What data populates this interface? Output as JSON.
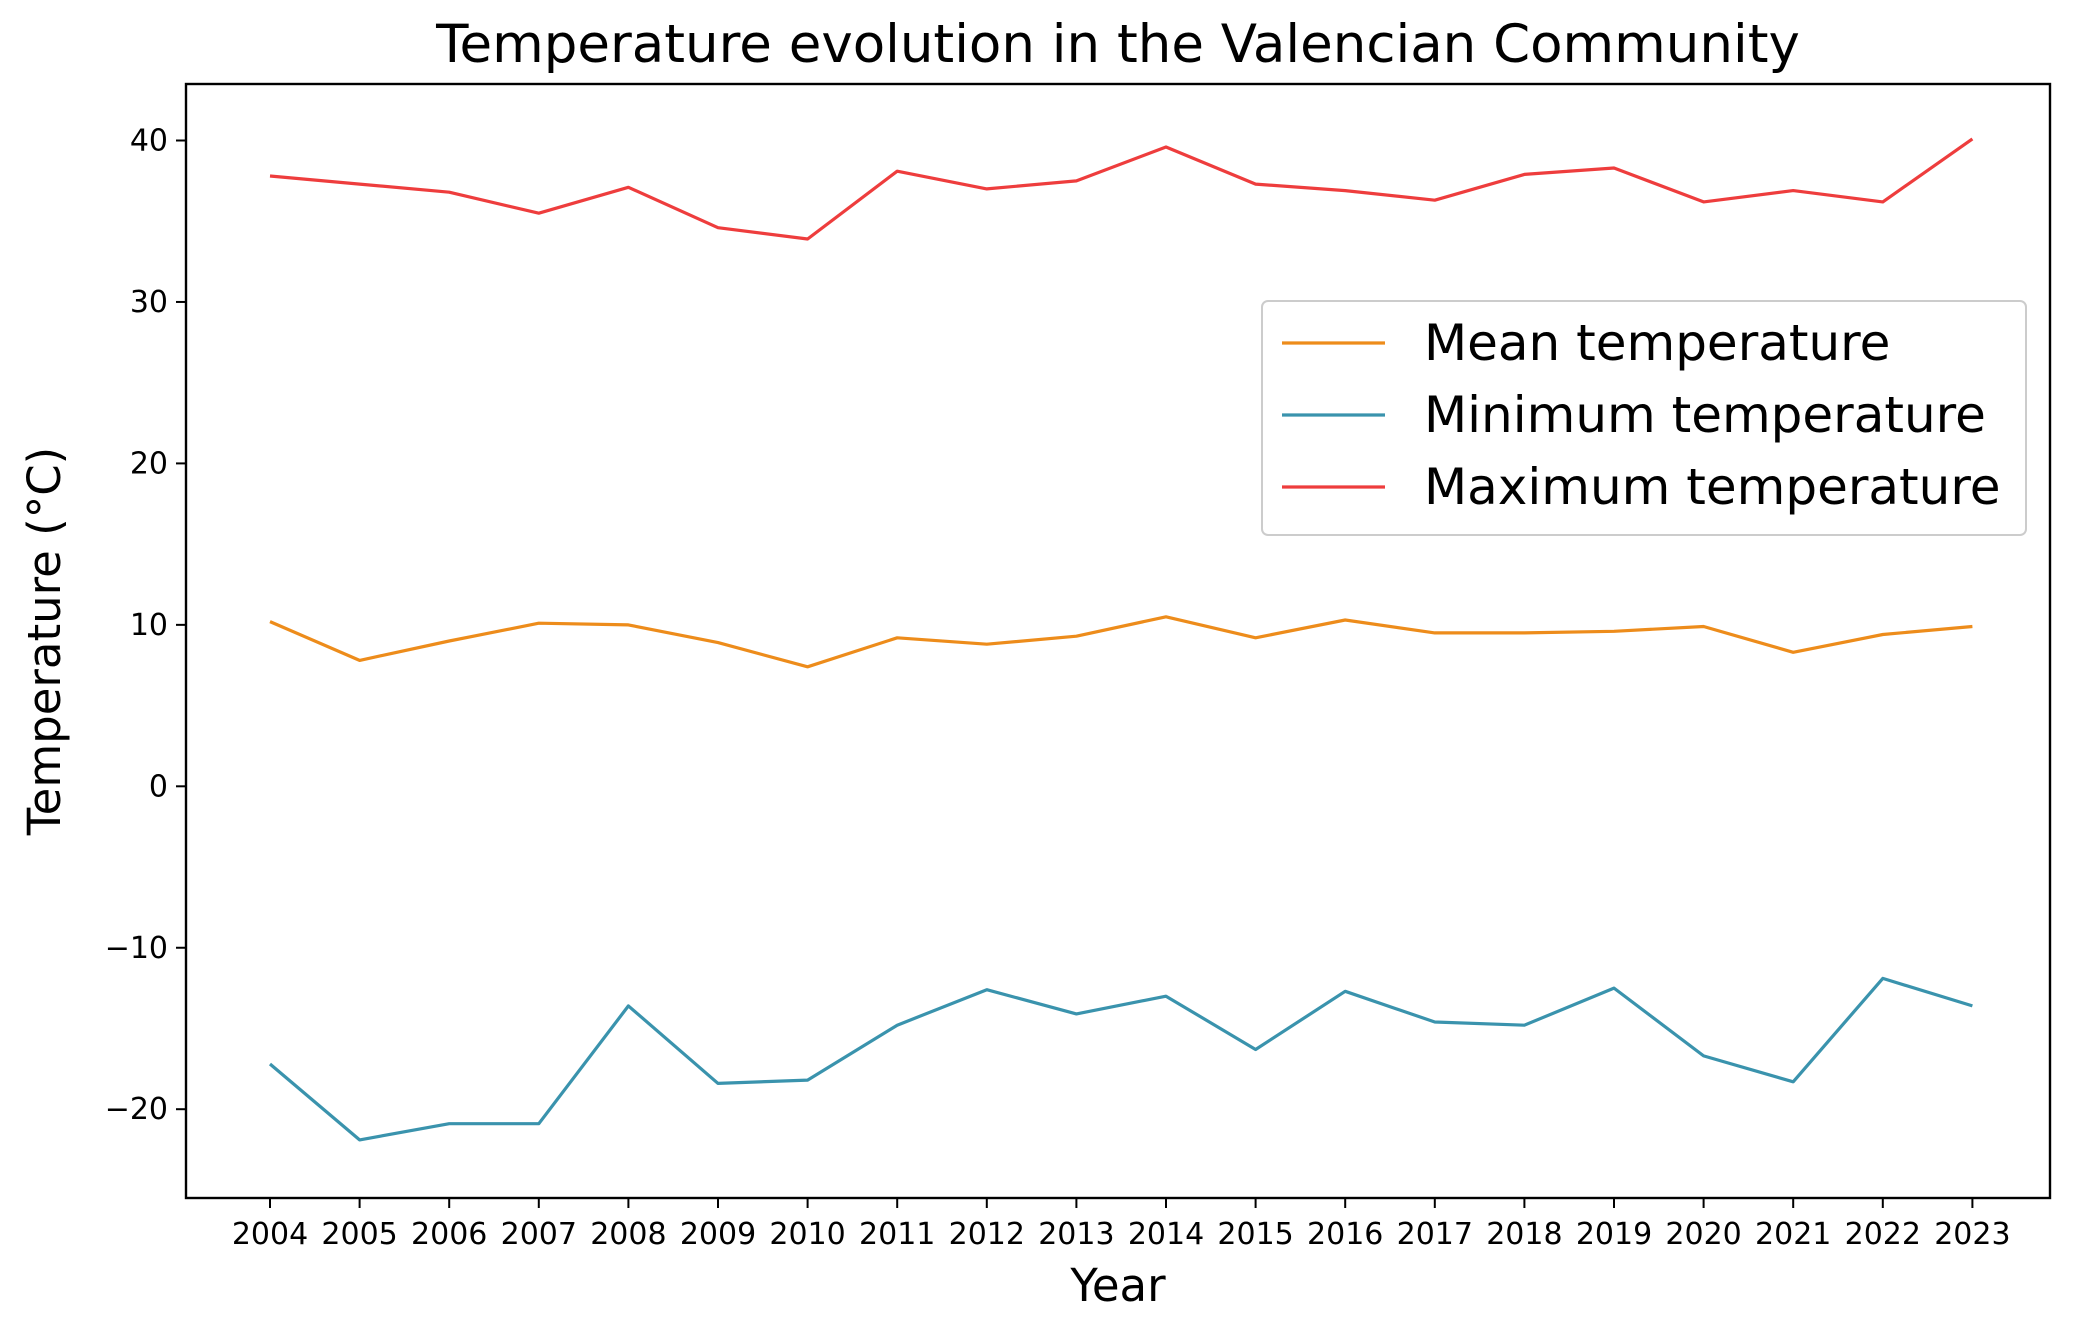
{
  "chart_data": {
    "type": "line",
    "title": "Temperature evolution in the Valencian Community",
    "xlabel": "Year",
    "ylabel": "Temperature (°C)",
    "categories": [
      "2004",
      "2005",
      "2006",
      "2007",
      "2008",
      "2009",
      "2010",
      "2011",
      "2012",
      "2013",
      "2014",
      "2015",
      "2016",
      "2017",
      "2018",
      "2019",
      "2020",
      "2021",
      "2022",
      "2023"
    ],
    "ylim": [
      -25.5,
      43.5
    ],
    "yticks": [
      -20,
      -10,
      0,
      10,
      20,
      30,
      40
    ],
    "grid": false,
    "legend_position": "upper-right",
    "series": [
      {
        "name": "Mean temperature",
        "color": "#ed8c1b",
        "values": [
          10.2,
          7.8,
          9.0,
          10.1,
          10.0,
          8.9,
          7.4,
          9.2,
          8.8,
          9.3,
          10.5,
          9.2,
          10.3,
          9.5,
          9.5,
          9.6,
          9.9,
          8.3,
          9.4,
          9.9
        ]
      },
      {
        "name": "Minimum temperature",
        "color": "#3a93ad",
        "values": [
          -17.2,
          -21.9,
          -20.9,
          -20.9,
          -13.6,
          -18.4,
          -18.2,
          -14.8,
          -12.6,
          -14.1,
          -13.0,
          -16.3,
          -12.7,
          -14.6,
          -14.8,
          -12.5,
          -16.7,
          -18.3,
          -11.9,
          -13.6
        ]
      },
      {
        "name": "Maximum temperature",
        "color": "#ee3d3d",
        "values": [
          37.8,
          37.3,
          36.8,
          35.5,
          37.1,
          34.6,
          33.9,
          38.1,
          37.0,
          37.5,
          39.6,
          37.3,
          36.9,
          36.3,
          37.9,
          38.3,
          36.2,
          36.9,
          36.2,
          40.1
        ]
      }
    ]
  }
}
